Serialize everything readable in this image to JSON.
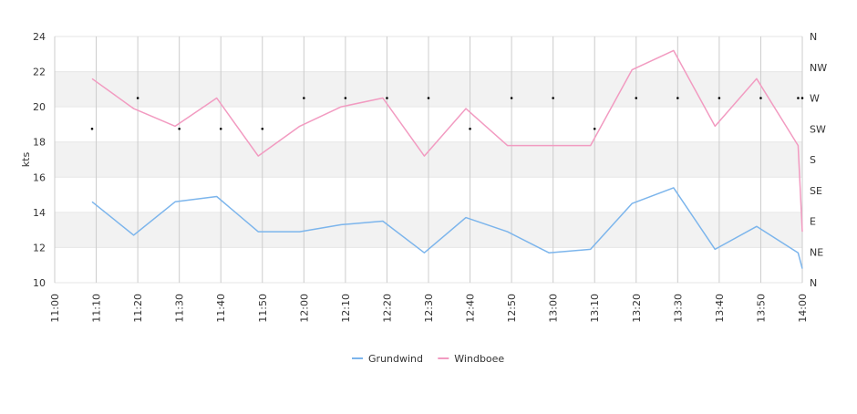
{
  "chart_data": {
    "type": "line",
    "ylabel": "kts",
    "ylim": [
      10,
      24
    ],
    "yticks": [
      10,
      12,
      14,
      16,
      18,
      20,
      22,
      24
    ],
    "x_range": [
      "11:00",
      "14:00"
    ],
    "xticks": [
      "11:00",
      "11:10",
      "11:20",
      "11:30",
      "11:40",
      "11:50",
      "12:00",
      "12:10",
      "12:20",
      "12:30",
      "12:40",
      "12:50",
      "13:00",
      "13:10",
      "13:20",
      "13:30",
      "13:40",
      "13:50",
      "14:00"
    ],
    "right_axis_labels": [
      "N",
      "NE",
      "E",
      "SE",
      "S",
      "SW",
      "W",
      "NW",
      "N"
    ],
    "x": [
      "11:09",
      "11:19",
      "11:29",
      "11:39",
      "11:49",
      "11:59",
      "12:09",
      "12:19",
      "12:29",
      "12:39",
      "12:49",
      "12:59",
      "13:09",
      "13:19",
      "13:29",
      "13:39",
      "13:49",
      "13:59",
      "14:00"
    ],
    "series": [
      {
        "name": "Grundwind",
        "color": "#7cb5ec",
        "values": [
          14.6,
          12.7,
          14.6,
          14.9,
          12.9,
          12.9,
          13.3,
          13.5,
          11.7,
          13.7,
          12.9,
          11.7,
          11.9,
          14.5,
          15.4,
          11.9,
          13.2,
          11.7,
          10.8
        ]
      },
      {
        "name": "Windboee",
        "color": "#f29bc1",
        "values": [
          21.6,
          19.9,
          18.9,
          20.5,
          17.2,
          18.9,
          20.0,
          20.5,
          17.2,
          19.9,
          17.8,
          17.8,
          17.8,
          22.1,
          23.2,
          18.9,
          21.6,
          17.8,
          12.9
        ]
      }
    ],
    "direction_markers": {
      "x": [
        "11:09",
        "11:20",
        "11:30",
        "11:40",
        "11:50",
        "12:00",
        "12:10",
        "12:20",
        "12:30",
        "12:40",
        "12:50",
        "13:00",
        "13:10",
        "13:20",
        "13:30",
        "13:40",
        "13:50",
        "13:59",
        "14:00"
      ],
      "directions": [
        "SW",
        "W",
        "SW",
        "SW",
        "SW",
        "W",
        "W",
        "W",
        "W",
        "SW",
        "W",
        "W",
        "SW",
        "W",
        "W",
        "W",
        "W",
        "W",
        "W"
      ]
    },
    "bands": "alternating light grey horizontal bands between y gridlines",
    "legend_position": "bottom-center"
  }
}
